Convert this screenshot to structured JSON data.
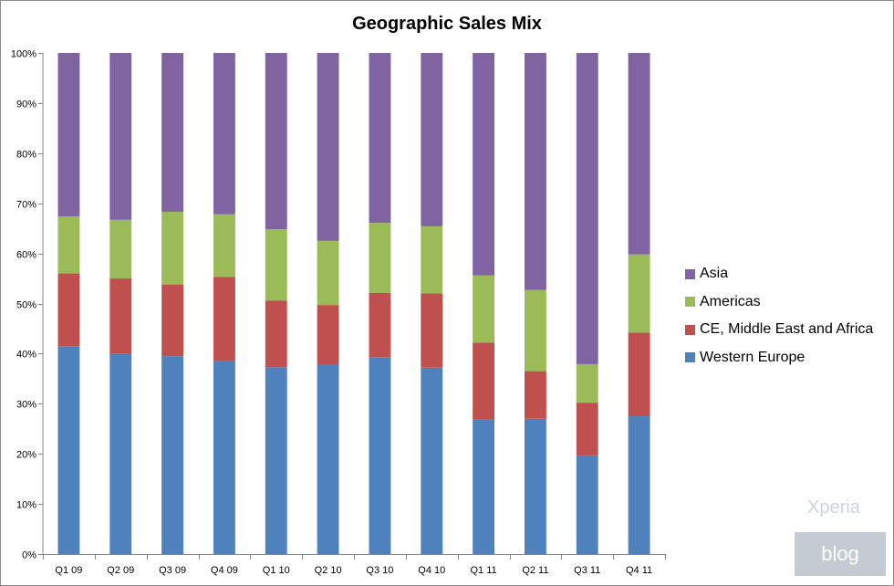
{
  "chart_data": {
    "type": "bar",
    "stacked": true,
    "percent_stacked": true,
    "title": "Geographic Sales Mix",
    "categories": [
      "Q1 09",
      "Q2 09",
      "Q3 09",
      "Q4 09",
      "Q1 10",
      "Q2 10",
      "Q3 10",
      "Q4 10",
      "Q1 11",
      "Q2 11",
      "Q3 11",
      "Q4 11"
    ],
    "series": [
      {
        "name": "Western Europe",
        "color": "#4f81bd",
        "values": [
          41.5,
          40.0,
          39.5,
          38.5,
          37.3,
          37.8,
          39.3,
          37.2,
          26.8,
          27.0,
          19.7,
          27.5
        ]
      },
      {
        "name": "CE, Middle East and Africa",
        "color": "#c0504d",
        "values": [
          14.5,
          15.0,
          14.3,
          16.8,
          13.3,
          11.9,
          12.8,
          14.8,
          15.4,
          9.5,
          10.5,
          16.7
        ]
      },
      {
        "name": "Americas",
        "color": "#9bbb59",
        "values": [
          11.4,
          11.7,
          14.5,
          12.5,
          14.2,
          12.8,
          14.0,
          13.4,
          13.4,
          16.2,
          7.7,
          15.6
        ]
      },
      {
        "name": "Asia",
        "color": "#8064a2",
        "values": [
          32.6,
          33.3,
          31.7,
          32.2,
          35.2,
          37.5,
          33.9,
          34.6,
          44.4,
          47.3,
          62.1,
          40.2
        ]
      }
    ],
    "y_ticks": [
      "0%",
      "10%",
      "20%",
      "30%",
      "40%",
      "50%",
      "60%",
      "70%",
      "80%",
      "90%",
      "100%"
    ],
    "ylim": [
      0,
      100
    ],
    "legend_position": "right",
    "legend_order": [
      "Asia",
      "Americas",
      "CE, Middle East and Africa",
      "Western Europe"
    ],
    "grid": false
  },
  "watermark": {
    "top_text": "Xperia",
    "badge_text": "blog"
  }
}
